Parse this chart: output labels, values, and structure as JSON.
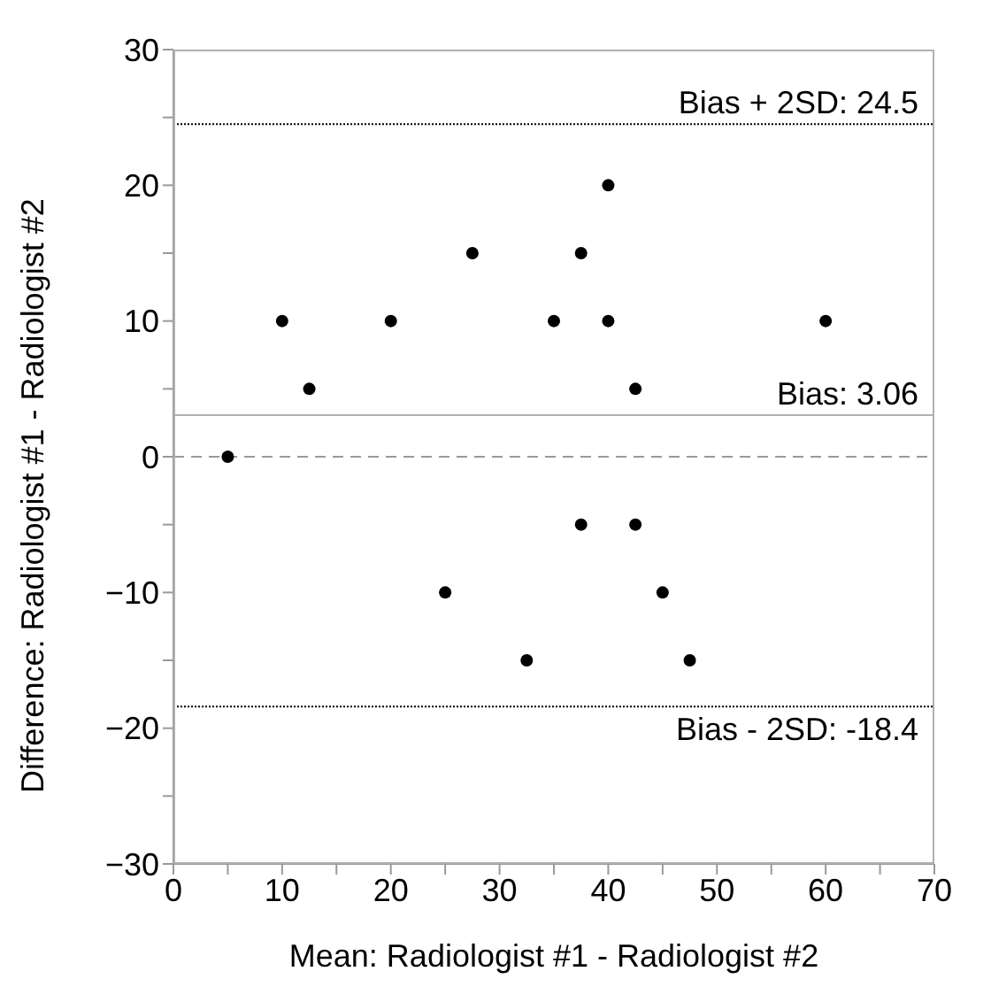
{
  "chart_data": {
    "type": "scatter",
    "xlabel": "Mean: Radiologist #1 - Radiologist #2",
    "ylabel": "Difference: Radiologist #1 - Radiologist #2",
    "x": [
      5,
      10,
      12.5,
      20,
      25,
      27.5,
      32.5,
      35,
      37.5,
      37.5,
      40,
      40,
      42.5,
      42.5,
      45,
      47.5,
      60
    ],
    "values": [
      0,
      10,
      5,
      10,
      -10,
      15,
      -15,
      10,
      15,
      -5,
      20,
      10,
      5,
      -5,
      -10,
      -15,
      10
    ],
    "color": "#000000",
    "marker": "circle",
    "xlim": [
      0,
      70
    ],
    "xticks": [
      0,
      {
        "value": 5,
        "label": null
      },
      10,
      {
        "value": 15,
        "label": null
      },
      20,
      {
        "value": 25,
        "label": null
      },
      30,
      {
        "value": 35,
        "label": null
      },
      40,
      {
        "value": 45,
        "label": null
      },
      50,
      {
        "value": 55,
        "label": null
      },
      60,
      {
        "value": 65,
        "label": null
      },
      70
    ],
    "ylim": [
      -30,
      30
    ],
    "yticks": [
      -30,
      {
        "value": -25,
        "label": null
      },
      -20,
      {
        "value": -15,
        "label": null
      },
      -10,
      {
        "value": -5,
        "label": null
      },
      0,
      {
        "value": 5,
        "label": null
      },
      10,
      {
        "value": 15,
        "label": null
      },
      20,
      {
        "value": 25,
        "label": null
      },
      30
    ],
    "ref_lines": [
      {
        "axis": "y",
        "value": 24.5,
        "label": "Bias + 2SD: 24.5",
        "color": "#000000",
        "line_style": "dotted"
      },
      {
        "axis": "y",
        "value": 3.06,
        "label": "Bias: 3.06",
        "color": "#b0b0b0",
        "line_style": "solid"
      },
      {
        "axis": "y",
        "value": 0,
        "label": null,
        "color": "#999999",
        "line_style": "dashed"
      },
      {
        "axis": "y",
        "value": -18.4,
        "label": "Bias - 2SD: -18.4",
        "color": "#000000",
        "line_style": "dotted"
      }
    ],
    "grid": false,
    "legend": false
  }
}
